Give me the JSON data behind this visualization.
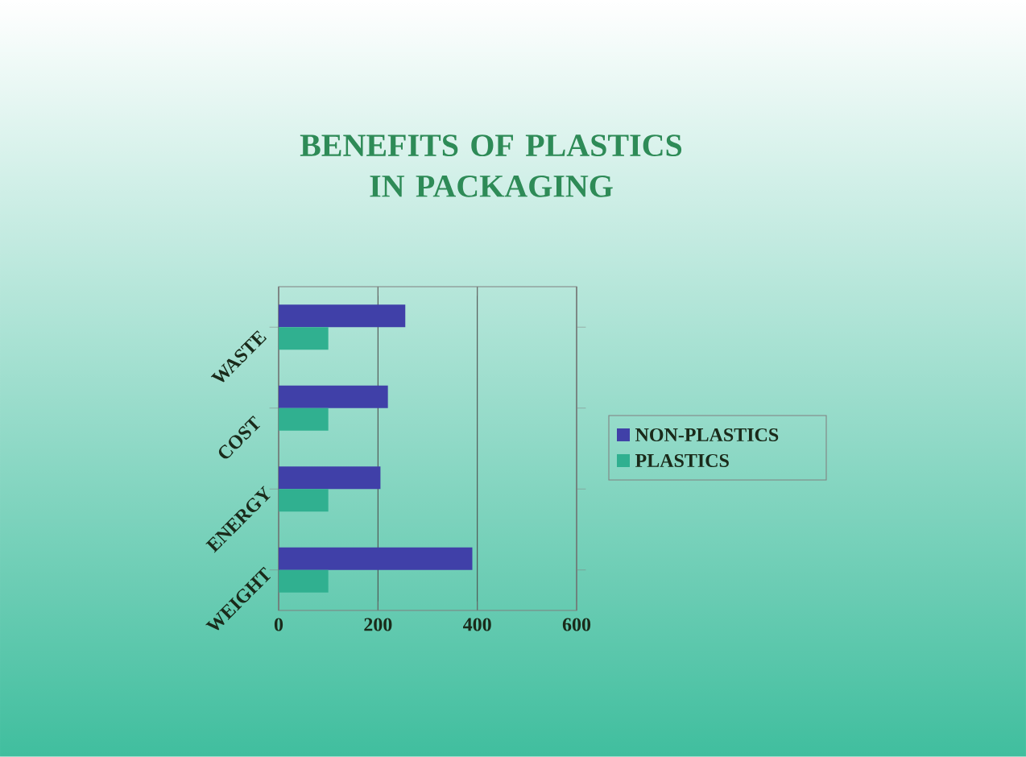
{
  "chart_data": {
    "type": "bar",
    "orientation": "horizontal",
    "title": "BENEFITS OF PLASTICS IN PACKAGING",
    "categories": [
      "WASTE",
      "COST",
      "ENERGY",
      "WEIGHT"
    ],
    "series": [
      {
        "name": "NON-PLASTICS",
        "color": "#4040a8",
        "values": [
          255,
          220,
          205,
          390
        ]
      },
      {
        "name": "PLASTICS",
        "color": "#30b090",
        "values": [
          100,
          100,
          100,
          100
        ]
      }
    ],
    "xlim": [
      0,
      600
    ],
    "xticks": [
      0,
      200,
      400,
      600
    ],
    "grid": "x",
    "legend": "right"
  }
}
